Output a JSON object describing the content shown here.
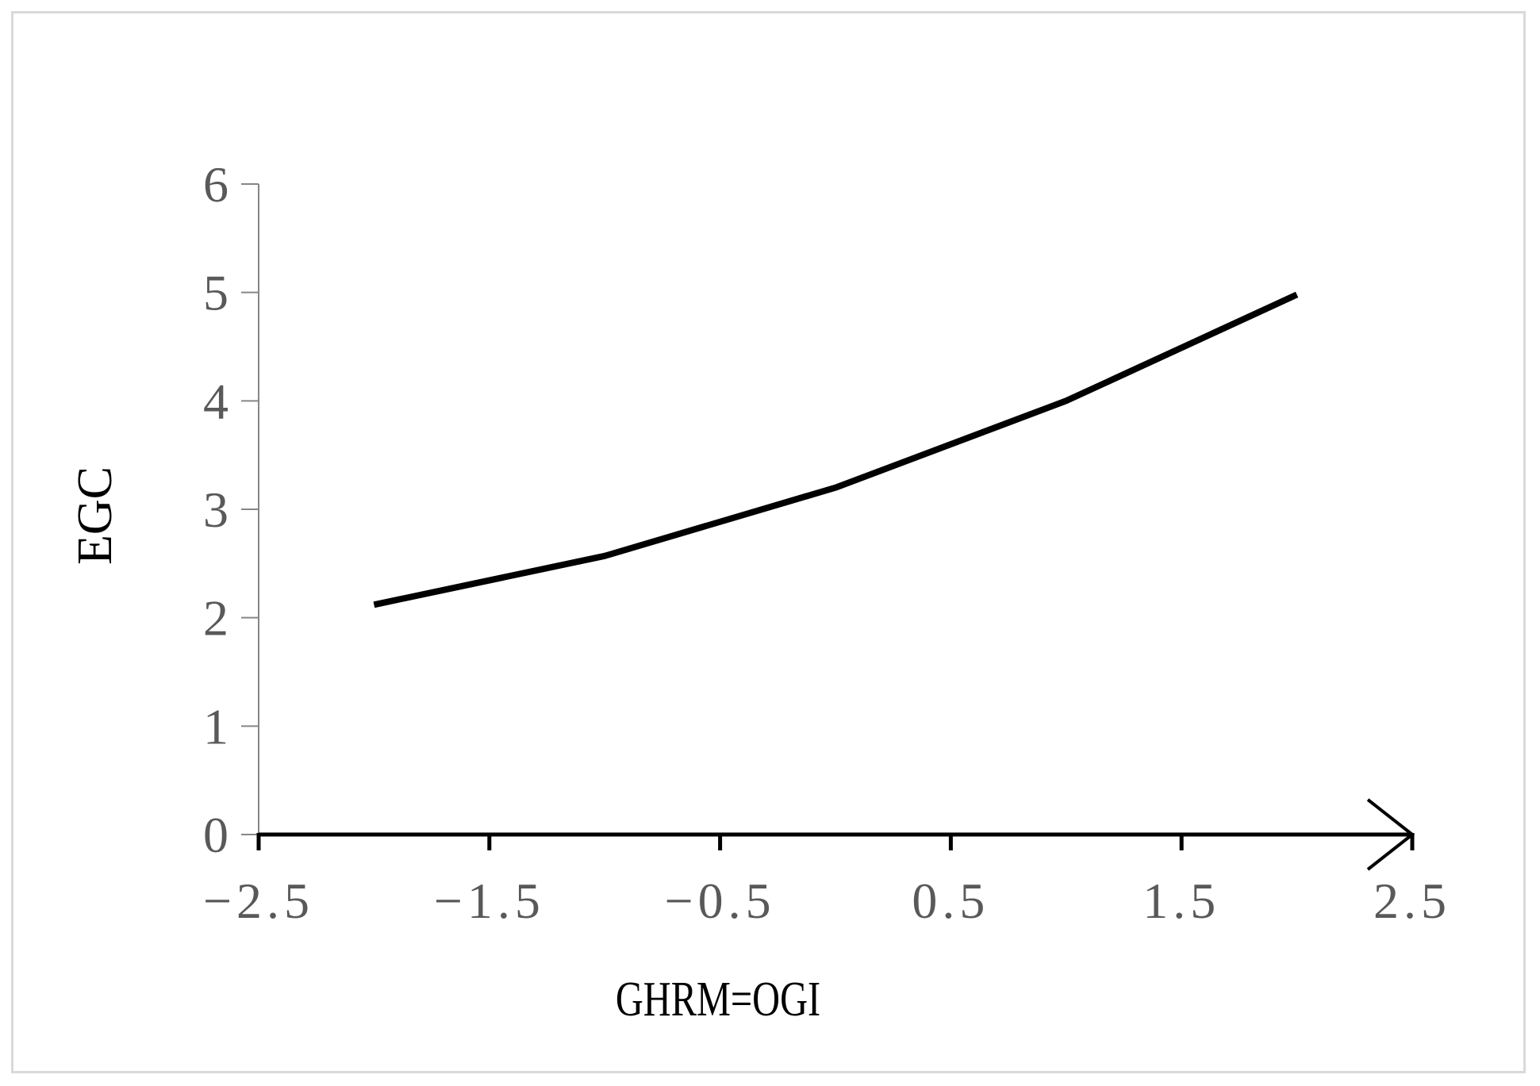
{
  "chart_data": {
    "type": "line",
    "title": "",
    "xlabel": "GHRM=OGI",
    "ylabel": "EGC",
    "xlim": [
      -2.5,
      2.5
    ],
    "ylim": [
      0,
      6
    ],
    "x_ticks": [
      -2.5,
      -1.5,
      -0.5,
      0.5,
      1.5,
      2.5
    ],
    "x_tick_labels": [
      "−2.5",
      "−1.5",
      "−0.5",
      "0.5",
      "1.5",
      "2.5"
    ],
    "y_ticks": [
      0,
      1,
      2,
      3,
      4,
      5,
      6
    ],
    "y_tick_labels": [
      "0",
      "1",
      "2",
      "3",
      "4",
      "5",
      "6"
    ],
    "grid": false,
    "legend": "none",
    "x_axis_arrow": true,
    "series": [
      {
        "x": [
          -2,
          -1,
          0,
          1,
          2
        ],
        "y": [
          2.12,
          2.57,
          3.2,
          4.0,
          4.98
        ],
        "color": "#000000"
      }
    ]
  }
}
